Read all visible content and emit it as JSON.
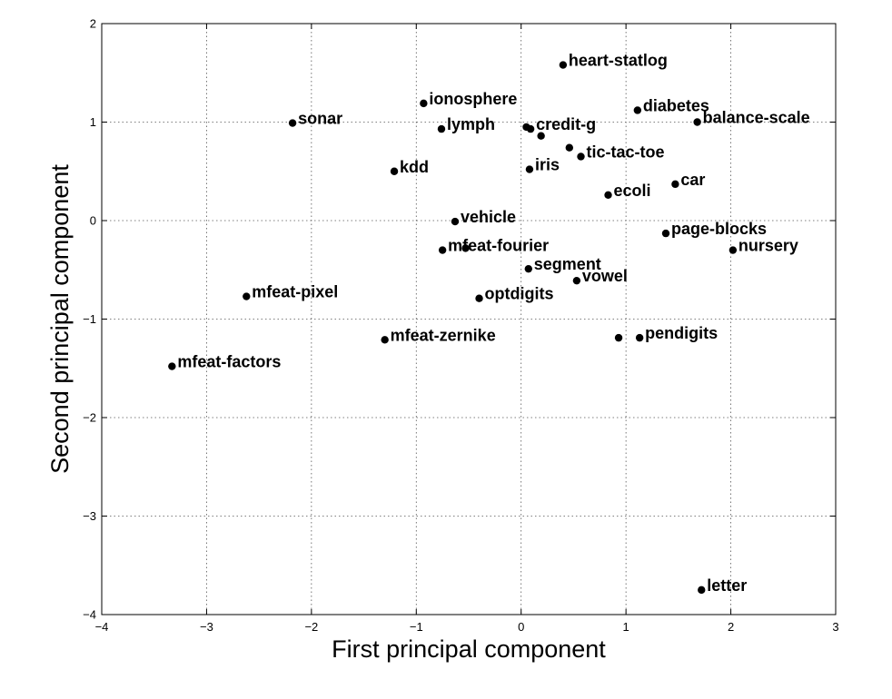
{
  "chart_data": {
    "type": "scatter",
    "title": "",
    "xlabel": "First principal component",
    "ylabel": "Second principal component",
    "xlim": [
      -4,
      3
    ],
    "ylim": [
      -4,
      2
    ],
    "xticks": [
      -4,
      -3,
      -2,
      -1,
      0,
      1,
      2,
      3
    ],
    "yticks": [
      -4,
      -3,
      -2,
      -1,
      0,
      1,
      2
    ],
    "grid": true,
    "points": [
      {
        "label": "heart-statlog",
        "x": 0.4,
        "y": 1.58
      },
      {
        "label": "ionosphere",
        "x": -0.93,
        "y": 1.19
      },
      {
        "label": "diabetes",
        "x": 1.11,
        "y": 1.12
      },
      {
        "label": "sonar",
        "x": -2.18,
        "y": 0.99
      },
      {
        "label": "lymph",
        "x": -0.76,
        "y": 0.93
      },
      {
        "label": "credit-g",
        "x": 0.09,
        "y": 0.93
      },
      {
        "label": "balance-scale",
        "x": 1.68,
        "y": 1.0
      },
      {
        "label": "",
        "x": 0.05,
        "y": 0.95
      },
      {
        "label": "",
        "x": 0.19,
        "y": 0.86
      },
      {
        "label": "tic-tac-toe",
        "x": 0.57,
        "y": 0.65
      },
      {
        "label": "",
        "x": 0.46,
        "y": 0.74
      },
      {
        "label": "kdd",
        "x": -1.21,
        "y": 0.5
      },
      {
        "label": "iris",
        "x": 0.08,
        "y": 0.52
      },
      {
        "label": "car",
        "x": 1.47,
        "y": 0.37
      },
      {
        "label": "ecoli",
        "x": 0.83,
        "y": 0.26
      },
      {
        "label": "vehicle",
        "x": -0.63,
        "y": -0.01
      },
      {
        "label": "page-blocks",
        "x": 1.38,
        "y": -0.13
      },
      {
        "label": "mfeat-fourier",
        "x": -0.75,
        "y": -0.3
      },
      {
        "label": "",
        "x": -0.53,
        "y": -0.28
      },
      {
        "label": "nursery",
        "x": 2.02,
        "y": -0.3
      },
      {
        "label": "segment",
        "x": 0.07,
        "y": -0.49
      },
      {
        "label": "vowel",
        "x": 0.53,
        "y": -0.61
      },
      {
        "label": "mfeat-pixel",
        "x": -2.62,
        "y": -0.77
      },
      {
        "label": "optdigits",
        "x": -0.4,
        "y": -0.79
      },
      {
        "label": "mfeat-zernike",
        "x": -1.3,
        "y": -1.21
      },
      {
        "label": "",
        "x": 0.93,
        "y": -1.19
      },
      {
        "label": "pendigits",
        "x": 1.13,
        "y": -1.19
      },
      {
        "label": "mfeat-factors",
        "x": -3.33,
        "y": -1.48
      },
      {
        "label": "letter",
        "x": 1.72,
        "y": -3.75
      }
    ]
  }
}
